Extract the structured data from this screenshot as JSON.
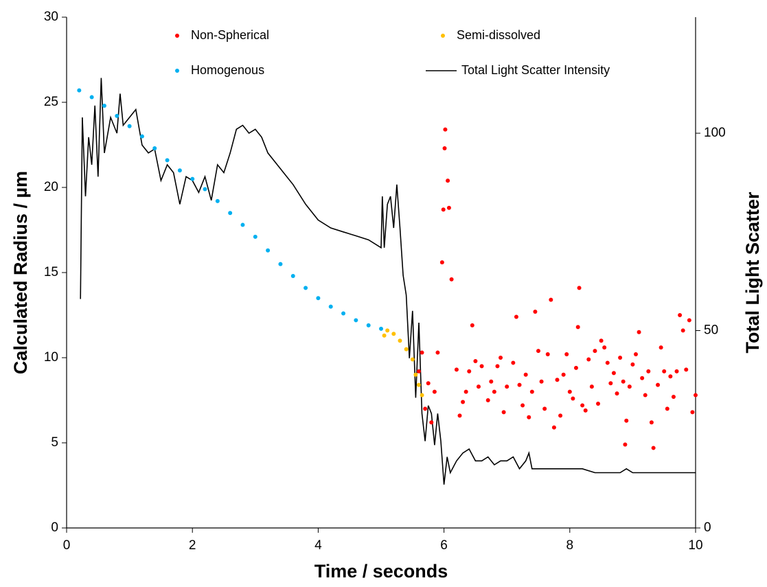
{
  "chart_data": {
    "type": "scatter",
    "x_label": "Time / seconds",
    "y_label": "Calculated Radius / µm",
    "y2_label": "Total Light Scatter",
    "xlim": [
      0,
      10
    ],
    "xticks": [
      0,
      2,
      4,
      6,
      8,
      10
    ],
    "ylim": [
      0,
      30
    ],
    "yticks": [
      0,
      5,
      10,
      15,
      20,
      25,
      30
    ],
    "y2lim": [
      0,
      129.4
    ],
    "y2ticks": [
      0,
      50,
      100
    ],
    "series": [
      {
        "name": "Non-Spherical",
        "type": "scatter",
        "color": "#ff0000",
        "x": [
          5.6,
          5.65,
          5.7,
          5.75,
          5.8,
          5.85,
          5.9,
          5.97,
          5.99,
          6.01,
          6.02,
          6.06,
          6.08,
          6.12,
          6.2,
          6.25,
          6.3,
          6.35,
          6.4,
          6.45,
          6.5,
          6.55,
          6.6,
          6.7,
          6.75,
          6.8,
          6.85,
          6.9,
          6.95,
          7.0,
          7.1,
          7.15,
          7.2,
          7.25,
          7.3,
          7.35,
          7.4,
          7.45,
          7.5,
          7.55,
          7.6,
          7.65,
          7.7,
          7.75,
          7.8,
          7.85,
          7.9,
          7.95,
          8.0,
          8.05,
          8.1,
          8.13,
          8.15,
          8.2,
          8.25,
          8.3,
          8.35,
          8.4,
          8.45,
          8.5,
          8.55,
          8.6,
          8.65,
          8.7,
          8.75,
          8.8,
          8.85,
          8.88,
          8.9,
          8.95,
          9.0,
          9.05,
          9.1,
          9.15,
          9.2,
          9.25,
          9.3,
          9.33,
          9.4,
          9.45,
          9.5,
          9.55,
          9.6,
          9.65,
          9.7,
          9.75,
          9.8,
          9.85,
          9.9,
          9.95,
          10.0
        ],
        "values": [
          9.2,
          10.3,
          7.0,
          8.5,
          6.2,
          8.0,
          10.3,
          15.6,
          18.7,
          22.3,
          23.4,
          20.4,
          18.8,
          14.6,
          9.3,
          6.6,
          7.4,
          8.0,
          9.2,
          11.9,
          9.8,
          8.3,
          9.5,
          7.5,
          8.6,
          8.0,
          9.5,
          10.0,
          6.8,
          8.3,
          9.7,
          12.4,
          8.4,
          7.2,
          9.0,
          6.5,
          8.0,
          12.7,
          10.4,
          8.6,
          7.0,
          10.2,
          13.4,
          5.9,
          8.7,
          6.6,
          9.0,
          10.2,
          8.0,
          7.6,
          9.4,
          11.8,
          14.1,
          7.2,
          6.9,
          9.9,
          8.3,
          10.4,
          7.3,
          11.0,
          10.6,
          9.7,
          8.5,
          9.1,
          7.9,
          10.0,
          8.6,
          4.9,
          6.3,
          8.3,
          9.6,
          10.2,
          11.5,
          8.8,
          7.8,
          9.2,
          6.2,
          4.7,
          8.4,
          10.6,
          9.2,
          7.0,
          8.9,
          7.7,
          9.2,
          12.5,
          11.6,
          9.3,
          12.2,
          6.8,
          7.8
        ]
      },
      {
        "name": "Semi-dissolved",
        "type": "scatter",
        "color": "#ffc000",
        "x": [
          5.05,
          5.1,
          5.2,
          5.3,
          5.4,
          5.5,
          5.55,
          5.6,
          5.65
        ],
        "values": [
          11.3,
          11.6,
          11.4,
          11.0,
          10.5,
          9.9,
          9.0,
          8.4,
          7.8
        ]
      },
      {
        "name": "Homogenous",
        "type": "scatter",
        "color": "#00b0f0",
        "x": [
          0.2,
          0.4,
          0.6,
          0.8,
          1.0,
          1.2,
          1.4,
          1.6,
          1.8,
          2.0,
          2.2,
          2.4,
          2.6,
          2.8,
          3.0,
          3.2,
          3.4,
          3.6,
          3.8,
          4.0,
          4.2,
          4.4,
          4.6,
          4.8,
          5.0
        ],
        "values": [
          25.7,
          25.3,
          24.8,
          24.2,
          23.6,
          23.0,
          22.3,
          21.6,
          21.0,
          20.5,
          19.9,
          19.2,
          18.5,
          17.8,
          17.1,
          16.3,
          15.5,
          14.8,
          14.1,
          13.5,
          13.0,
          12.6,
          12.2,
          11.9,
          11.7
        ]
      },
      {
        "name": "Total Light Scatter Intensity",
        "type": "line",
        "axis": "y2",
        "color": "#000000",
        "x": [
          0.22,
          0.25,
          0.3,
          0.35,
          0.4,
          0.45,
          0.5,
          0.55,
          0.6,
          0.7,
          0.8,
          0.85,
          0.9,
          1.0,
          1.1,
          1.2,
          1.3,
          1.4,
          1.5,
          1.6,
          1.7,
          1.8,
          1.9,
          2.0,
          2.1,
          2.2,
          2.3,
          2.4,
          2.5,
          2.6,
          2.7,
          2.8,
          2.9,
          3.0,
          3.1,
          3.2,
          3.4,
          3.6,
          3.8,
          4.0,
          4.2,
          4.4,
          4.6,
          4.8,
          5.0,
          5.02,
          5.05,
          5.1,
          5.15,
          5.2,
          5.25,
          5.3,
          5.35,
          5.4,
          5.45,
          5.5,
          5.55,
          5.6,
          5.65,
          5.7,
          5.75,
          5.8,
          5.85,
          5.9,
          5.95,
          6.0,
          6.05,
          6.1,
          6.2,
          6.3,
          6.4,
          6.5,
          6.6,
          6.7,
          6.8,
          6.9,
          7.0,
          7.1,
          7.2,
          7.3,
          7.35,
          7.4,
          7.6,
          7.8,
          8.0,
          8.2,
          8.4,
          8.6,
          8.8,
          8.9,
          9.0,
          9.2,
          9.4,
          9.6,
          9.8,
          10.0
        ],
        "values": [
          58,
          104,
          84,
          99,
          92,
          107,
          89,
          114,
          95,
          104,
          100,
          110,
          102,
          104,
          106,
          97,
          95,
          96,
          88,
          92,
          90,
          82,
          89,
          88,
          85,
          89,
          83,
          92,
          90,
          95,
          101,
          102,
          100,
          101,
          99,
          95,
          91,
          87,
          82,
          78,
          76,
          75,
          74,
          73,
          71,
          84,
          71,
          82,
          84,
          76,
          87,
          76,
          64,
          59,
          43,
          55,
          33,
          52,
          29,
          22,
          31,
          29,
          21,
          29,
          22,
          11,
          18,
          14,
          17,
          19,
          20,
          17,
          17,
          18,
          16,
          17,
          17,
          18,
          15,
          17,
          19,
          15,
          15,
          15,
          15,
          15,
          14,
          14,
          14,
          15,
          14,
          14,
          14,
          14,
          14,
          14
        ]
      }
    ]
  }
}
